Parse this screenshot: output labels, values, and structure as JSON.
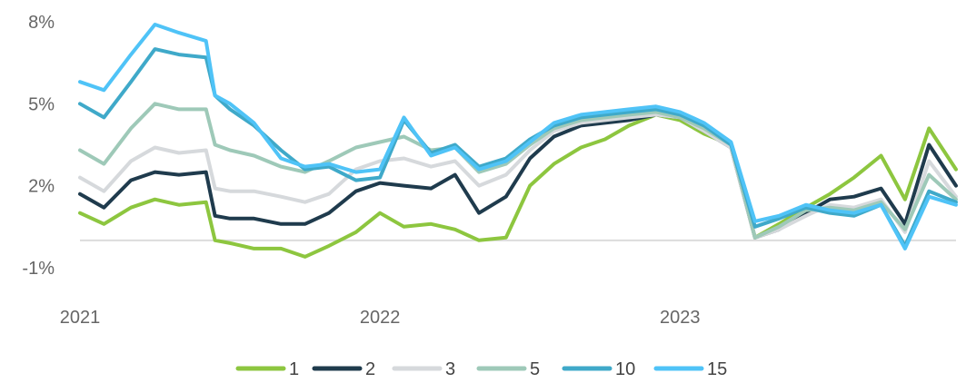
{
  "chart_data": {
    "type": "line",
    "title": "",
    "xlabel": "",
    "ylabel": "",
    "x_ticks": [
      "2021",
      "2022",
      "2023"
    ],
    "y_ticks": [
      "8%",
      "5%",
      "2%",
      "-1%"
    ],
    "y_tick_values": [
      8,
      5,
      2,
      -1
    ],
    "xlim": [
      2021.0,
      2023.92
    ],
    "ylim": [
      -1.5,
      8.2
    ],
    "grid": false,
    "baseline": 0,
    "legend_position": "bottom",
    "x": [
      2021.0,
      2021.08,
      2021.17,
      2021.25,
      2021.33,
      2021.42,
      2021.45,
      2021.5,
      2021.58,
      2021.67,
      2021.75,
      2021.83,
      2021.92,
      2022.0,
      2022.08,
      2022.17,
      2022.25,
      2022.33,
      2022.42,
      2022.5,
      2022.58,
      2022.67,
      2022.75,
      2022.83,
      2022.92,
      2023.0,
      2023.08,
      2023.17,
      2023.25,
      2023.33,
      2023.42,
      2023.5,
      2023.58,
      2023.67,
      2023.75,
      2023.83,
      2023.92
    ],
    "series": [
      {
        "name": "1",
        "color": "#8dc63f",
        "values": [
          1.0,
          0.6,
          1.2,
          1.5,
          1.3,
          1.4,
          0.0,
          -0.1,
          -0.3,
          -0.3,
          -0.6,
          -0.2,
          0.3,
          1.0,
          0.5,
          0.6,
          0.4,
          0.0,
          0.1,
          2.0,
          2.8,
          3.4,
          3.7,
          4.2,
          4.6,
          4.4,
          3.9,
          3.5,
          0.1,
          0.6,
          1.2,
          1.7,
          2.3,
          3.1,
          1.5,
          4.1,
          2.6
        ]
      },
      {
        "name": "2",
        "color": "#1f3b4d",
        "values": [
          1.7,
          1.2,
          2.2,
          2.5,
          2.4,
          2.5,
          0.9,
          0.8,
          0.8,
          0.6,
          0.6,
          1.0,
          1.8,
          2.1,
          2.0,
          1.9,
          2.4,
          1.0,
          1.6,
          3.0,
          3.8,
          4.2,
          4.3,
          4.4,
          4.6,
          4.5,
          4.0,
          3.4,
          0.1,
          0.4,
          1.0,
          1.5,
          1.6,
          1.9,
          0.6,
          3.5,
          2.0
        ]
      },
      {
        "name": "3",
        "color": "#d6d9dc",
        "values": [
          2.3,
          1.8,
          2.9,
          3.4,
          3.2,
          3.3,
          1.9,
          1.8,
          1.8,
          1.6,
          1.4,
          1.7,
          2.6,
          2.9,
          3.0,
          2.7,
          2.9,
          2.0,
          2.4,
          3.3,
          4.0,
          4.3,
          4.4,
          4.5,
          4.6,
          4.5,
          4.0,
          3.4,
          0.1,
          0.4,
          0.9,
          1.3,
          1.2,
          1.5,
          0.3,
          2.9,
          1.6
        ]
      },
      {
        "name": "5",
        "color": "#9ec9b8",
        "values": [
          3.3,
          2.8,
          4.1,
          5.0,
          4.8,
          4.8,
          3.5,
          3.3,
          3.1,
          2.7,
          2.5,
          2.9,
          3.4,
          3.6,
          3.8,
          3.3,
          3.4,
          2.5,
          2.8,
          3.5,
          4.1,
          4.4,
          4.5,
          4.6,
          4.7,
          4.5,
          4.1,
          3.5,
          0.1,
          0.5,
          1.1,
          1.2,
          1.1,
          1.4,
          0.4,
          2.4,
          1.5
        ]
      },
      {
        "name": "10",
        "color": "#3fa9c9",
        "values": [
          5.0,
          4.5,
          5.8,
          7.0,
          6.8,
          6.7,
          5.3,
          4.8,
          4.2,
          3.3,
          2.6,
          2.7,
          2.2,
          2.3,
          4.4,
          3.2,
          3.5,
          2.7,
          3.0,
          3.7,
          4.2,
          4.5,
          4.6,
          4.7,
          4.8,
          4.6,
          4.2,
          3.5,
          0.5,
          0.8,
          1.2,
          1.0,
          0.9,
          1.3,
          -0.2,
          1.8,
          1.4
        ]
      },
      {
        "name": "15",
        "color": "#4fc3f7",
        "values": [
          5.8,
          5.5,
          6.8,
          7.9,
          7.6,
          7.3,
          5.3,
          5.0,
          4.3,
          3.0,
          2.7,
          2.8,
          2.5,
          2.6,
          4.5,
          3.1,
          3.4,
          2.6,
          2.9,
          3.6,
          4.3,
          4.6,
          4.7,
          4.8,
          4.9,
          4.7,
          4.3,
          3.6,
          0.7,
          0.9,
          1.3,
          1.1,
          1.0,
          1.3,
          -0.3,
          1.6,
          1.3
        ]
      }
    ]
  }
}
